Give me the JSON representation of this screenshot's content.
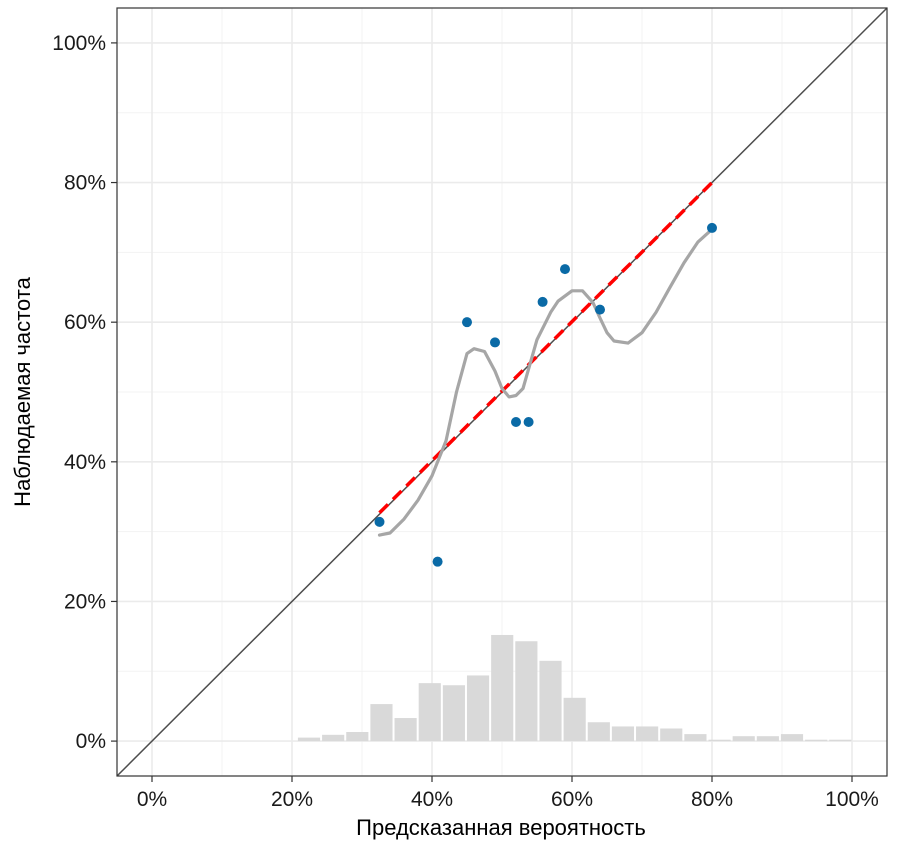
{
  "chart_data": {
    "type": "scatter",
    "xlabel": "Предсказанная вероятность",
    "ylabel": "Наблюдаемая частота",
    "xlim": [
      -0.05,
      1.05
    ],
    "ylim": [
      -0.05,
      1.05
    ],
    "x_ticks": [
      0,
      0.2,
      0.4,
      0.6,
      0.8,
      1.0
    ],
    "x_tick_labels": [
      "0%",
      "20%",
      "40%",
      "60%",
      "80%",
      "100%"
    ],
    "y_ticks": [
      0,
      0.2,
      0.4,
      0.6,
      0.8,
      1.0
    ],
    "y_tick_labels": [
      "0%",
      "20%",
      "40%",
      "60%",
      "80%",
      "100%"
    ],
    "grid": true,
    "colors": {
      "points": "#0a6aa6",
      "fit": "#ff0000",
      "smooth": "#a6a6a6",
      "histogram": "#d9d9d9",
      "diagonal": "#4d4d4d",
      "grid": "#ebebeb",
      "panel_border": "#333333"
    },
    "diagonal": [
      [
        -0.05,
        -0.05
      ],
      [
        1.05,
        1.05
      ]
    ],
    "points": {
      "x": [
        0.325,
        0.408,
        0.45,
        0.49,
        0.52,
        0.538,
        0.558,
        0.59,
        0.64,
        0.8
      ],
      "y": [
        0.314,
        0.257,
        0.6,
        0.571,
        0.457,
        0.457,
        0.629,
        0.676,
        0.618,
        0.735
      ]
    },
    "linear_fit": {
      "x": [
        0.325,
        0.8
      ],
      "y": [
        0.327,
        0.8
      ]
    },
    "smooth_curve": {
      "x": [
        0.325,
        0.34,
        0.36,
        0.38,
        0.4,
        0.42,
        0.435,
        0.45,
        0.46,
        0.475,
        0.49,
        0.5,
        0.51,
        0.52,
        0.53,
        0.54,
        0.55,
        0.56,
        0.57,
        0.58,
        0.6,
        0.615,
        0.63,
        0.64,
        0.65,
        0.66,
        0.68,
        0.7,
        0.72,
        0.74,
        0.76,
        0.78,
        0.8
      ],
      "y": [
        0.295,
        0.298,
        0.318,
        0.345,
        0.38,
        0.43,
        0.5,
        0.555,
        0.562,
        0.558,
        0.53,
        0.505,
        0.493,
        0.495,
        0.505,
        0.54,
        0.575,
        0.595,
        0.615,
        0.63,
        0.645,
        0.645,
        0.628,
        0.606,
        0.585,
        0.573,
        0.57,
        0.585,
        0.614,
        0.65,
        0.685,
        0.715,
        0.733
      ]
    },
    "histogram": {
      "bin_width": 0.0345,
      "bins": [
        {
          "x": 0.2243,
          "h": 0.005
        },
        {
          "x": 0.2588,
          "h": 0.009
        },
        {
          "x": 0.2933,
          "h": 0.013
        },
        {
          "x": 0.3278,
          "h": 0.053
        },
        {
          "x": 0.3623,
          "h": 0.033
        },
        {
          "x": 0.3968,
          "h": 0.083
        },
        {
          "x": 0.4313,
          "h": 0.08
        },
        {
          "x": 0.4658,
          "h": 0.094
        },
        {
          "x": 0.5003,
          "h": 0.152
        },
        {
          "x": 0.5348,
          "h": 0.143
        },
        {
          "x": 0.5693,
          "h": 0.115
        },
        {
          "x": 0.6038,
          "h": 0.062
        },
        {
          "x": 0.6383,
          "h": 0.027
        },
        {
          "x": 0.6728,
          "h": 0.021
        },
        {
          "x": 0.7073,
          "h": 0.021
        },
        {
          "x": 0.7418,
          "h": 0.018
        },
        {
          "x": 0.7763,
          "h": 0.01
        },
        {
          "x": 0.8108,
          "h": 0.002
        },
        {
          "x": 0.8453,
          "h": 0.007
        },
        {
          "x": 0.8798,
          "h": 0.007
        },
        {
          "x": 0.9143,
          "h": 0.01
        },
        {
          "x": 0.9488,
          "h": 0.002
        },
        {
          "x": 0.9833,
          "h": 0.002
        }
      ]
    }
  }
}
